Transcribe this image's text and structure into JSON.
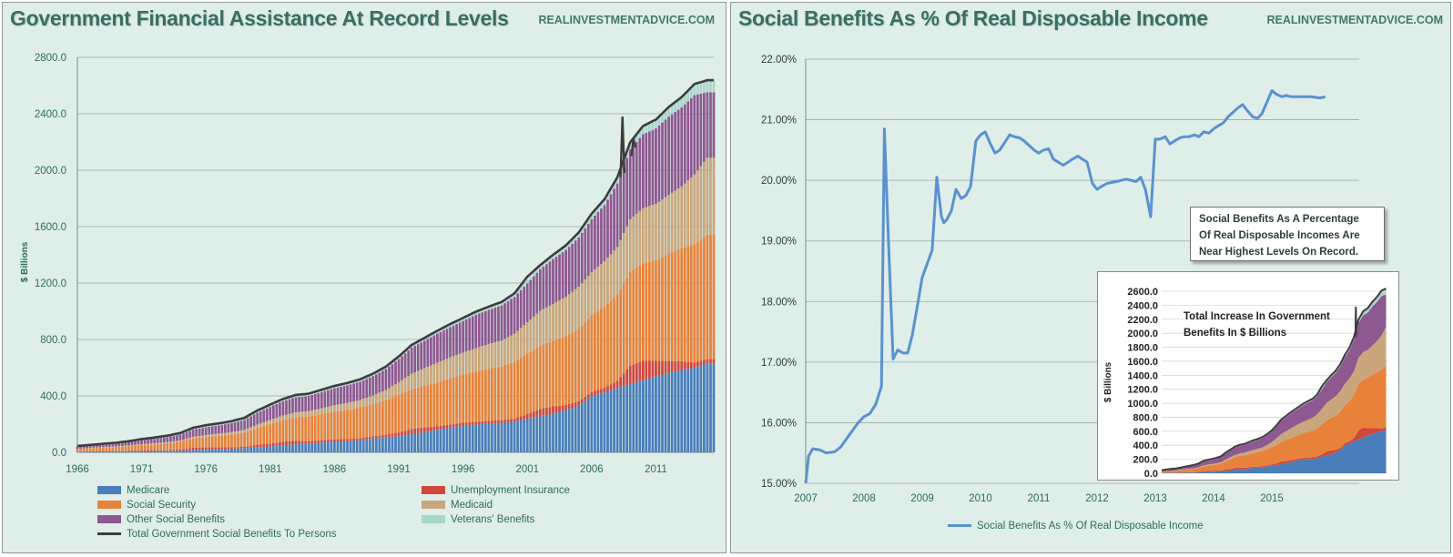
{
  "left": {
    "title": "Government Financial Assistance At Record Levels",
    "site": "REALINVESTMENTADVICE.COM"
  },
  "right": {
    "title": "Social Benefits As % Of Real Disposable Income",
    "site": "REALINVESTMENTADVICE.COM",
    "note": [
      "Social Benefits As  A Percentage",
      "Of Real Disposable Incomes Are",
      "Near Highest Levels On Record."
    ],
    "inset_note": [
      "Total Increase In Government",
      "Benefits In $ Billions"
    ]
  },
  "colors": {
    "medicare": "#4a7ebb",
    "unemployment": "#d2463c",
    "social_security": "#e8823a",
    "medicaid": "#c9a67c",
    "other": "#8e5891",
    "veterans": "#a9d6cb",
    "total": "#3d3d3d",
    "ratio_line": "#5b91cf",
    "axis_text": "#2f6b5f",
    "panel_bg": "#dfeee9"
  },
  "chart_data": [
    {
      "type": "area",
      "subtype": "stacked-bar",
      "title": "Government Financial Assistance At Record Levels",
      "xlabel": "",
      "ylabel": "$ Billions",
      "ylim": [
        0,
        2800
      ],
      "yticks": [
        "0.0",
        "400.0",
        "800.0",
        "1200.0",
        "1600.0",
        "2000.0",
        "2400.0",
        "2800.0"
      ],
      "xticks": [
        "1966",
        "1971",
        "1976",
        "1981",
        "1986",
        "1991",
        "1996",
        "2001",
        "2006",
        "2011"
      ],
      "xlim": [
        1966,
        2015.5
      ],
      "grid": true,
      "legend_position": "bottom",
      "x": [
        1966,
        1967,
        1968,
        1969,
        1970,
        1971,
        1972,
        1973,
        1974,
        1975,
        1976,
        1977,
        1978,
        1979,
        1980,
        1981,
        1982,
        1983,
        1984,
        1985,
        1986,
        1987,
        1988,
        1989,
        1990,
        1991,
        1992,
        1993,
        1994,
        1995,
        1996,
        1997,
        1998,
        1999,
        2000,
        2001,
        2002,
        2003,
        2004,
        2005,
        2006,
        2007,
        2008,
        2009,
        2010,
        2011,
        2012,
        2013,
        2014,
        2015
      ],
      "series": [
        {
          "name": "Medicare",
          "values": [
            2,
            6,
            7,
            8,
            8,
            9,
            10,
            11,
            13,
            16,
            20,
            23,
            26,
            30,
            36,
            43,
            50,
            56,
            62,
            69,
            75,
            80,
            86,
            98,
            107,
            115,
            129,
            142,
            160,
            175,
            188,
            197,
            203,
            207,
            219,
            239,
            255,
            273,
            300,
            330,
            398,
            425,
            455,
            484,
            511,
            540,
            563,
            584,
            600,
            630
          ]
        },
        {
          "name": "Unemployment Insurance",
          "values": [
            2,
            2,
            2,
            2,
            4,
            6,
            6,
            4,
            7,
            18,
            15,
            12,
            10,
            10,
            18,
            19,
            25,
            26,
            16,
            16,
            17,
            15,
            14,
            15,
            18,
            26,
            38,
            34,
            24,
            21,
            22,
            20,
            20,
            21,
            21,
            32,
            53,
            53,
            36,
            32,
            30,
            33,
            51,
            131,
            139,
            108,
            84,
            62,
            36,
            33
          ]
        },
        {
          "name": "Social Security",
          "values": [
            20,
            22,
            25,
            28,
            31,
            37,
            41,
            49,
            55,
            64,
            73,
            81,
            89,
            99,
            118,
            138,
            154,
            167,
            176,
            186,
            196,
            205,
            216,
            228,
            244,
            265,
            280,
            296,
            311,
            327,
            342,
            356,
            370,
            380,
            401,
            426,
            449,
            466,
            487,
            512,
            544,
            575,
            610,
            662,
            690,
            713,
            763,
            799,
            839,
            880
          ]
        },
        {
          "name": "Medicaid",
          "values": [
            1,
            2,
            3,
            4,
            5,
            6,
            7,
            8,
            9,
            12,
            15,
            17,
            18,
            21,
            25,
            30,
            32,
            35,
            38,
            42,
            46,
            50,
            55,
            62,
            73,
            91,
            110,
            125,
            140,
            150,
            155,
            165,
            175,
            185,
            200,
            225,
            245,
            260,
            280,
            300,
            305,
            320,
            340,
            375,
            390,
            400,
            415,
            440,
            495,
            545
          ]
        },
        {
          "name": "Other Social Benefits",
          "values": [
            15,
            16,
            18,
            20,
            24,
            28,
            32,
            36,
            42,
            51,
            55,
            58,
            64,
            70,
            85,
            92,
            102,
            107,
            108,
            115,
            121,
            126,
            130,
            138,
            148,
            165,
            185,
            195,
            207,
            215,
            224,
            237,
            242,
            249,
            261,
            276,
            296,
            318,
            332,
            350,
            376,
            400,
            450,
            495,
            525,
            535,
            555,
            560,
            562,
            465
          ]
        },
        {
          "name": "Veterans' Benefits",
          "values": [
            5,
            5,
            6,
            6,
            7,
            8,
            9,
            10,
            11,
            13,
            14,
            14,
            14,
            15,
            15,
            16,
            16,
            16,
            16,
            16,
            16,
            16,
            17,
            17,
            18,
            18,
            19,
            19,
            20,
            21,
            22,
            22,
            23,
            24,
            25,
            27,
            29,
            30,
            32,
            35,
            38,
            41,
            44,
            51,
            58,
            63,
            68,
            73,
            79,
            85
          ]
        },
        {
          "name": "Total Government Social Benefits To Persons",
          "values": [
            45,
            53,
            61,
            68,
            79,
            94,
            105,
            118,
            137,
            174,
            192,
            205,
            221,
            245,
            297,
            338,
            379,
            407,
            416,
            444,
            471,
            492,
            518,
            558,
            608,
            680,
            761,
            811,
            862,
            909,
            953,
            997,
            1033,
            1066,
            1127,
            1245,
            1327,
            1400,
            1467,
            1559,
            1691,
            1794,
            1950,
            2198,
            2313,
            2359,
            2448,
            2518,
            2611,
            2638
          ]
        }
      ],
      "annotations": [
        {
          "x": 2008.4,
          "value": 2380,
          "label": ""
        }
      ]
    },
    {
      "type": "line",
      "title": "Social Benefits As % Of Real Disposable Income",
      "xlabel": "",
      "ylabel": "",
      "ylim": [
        15.0,
        22.0
      ],
      "yticks": [
        "15.00%",
        "16.00%",
        "17.00%",
        "18.00%",
        "19.00%",
        "20.00%",
        "21.00%",
        "22.00%"
      ],
      "xticks": [
        "2007",
        "2008",
        "2009",
        "2010",
        "2011",
        "2012",
        "2013",
        "2014",
        "2015"
      ],
      "xlim": [
        2007,
        2016.5
      ],
      "grid": true,
      "legend_position": "bottom",
      "series": [
        {
          "name": "Social Benefits As % Of Real Disposable Income",
          "x": [
            2007.0,
            2007.05,
            2007.12,
            2007.25,
            2007.35,
            2007.5,
            2007.6,
            2007.75,
            2007.9,
            2008.0,
            2008.1,
            2008.2,
            2008.3,
            2008.35,
            2008.42,
            2008.5,
            2008.58,
            2008.67,
            2008.75,
            2008.83,
            2008.92,
            2009.0,
            2009.17,
            2009.25,
            2009.33,
            2009.37,
            2009.42,
            2009.5,
            2009.58,
            2009.67,
            2009.75,
            2009.83,
            2009.92,
            2010.0,
            2010.08,
            2010.17,
            2010.25,
            2010.33,
            2010.5,
            2010.58,
            2010.67,
            2010.75,
            2010.92,
            2011.0,
            2011.08,
            2011.17,
            2011.25,
            2011.42,
            2011.5,
            2011.58,
            2011.67,
            2011.83,
            2011.92,
            2012.0,
            2012.08,
            2012.17,
            2012.33,
            2012.5,
            2012.67,
            2012.75,
            2012.83,
            2012.92,
            2013.0,
            2013.08,
            2013.17,
            2013.25,
            2013.33,
            2013.42,
            2013.5,
            2013.58,
            2013.67,
            2013.75,
            2013.83,
            2013.92,
            2014.0,
            2014.08,
            2014.17,
            2014.25,
            2014.33,
            2014.42,
            2014.5,
            2014.58,
            2014.67,
            2014.75,
            2014.83,
            2014.92,
            2015.0,
            2015.08,
            2015.17,
            2015.25,
            2015.33,
            2015.42,
            2015.5,
            2015.67,
            2015.83,
            2015.92
          ],
          "values": [
            15.0,
            15.45,
            15.57,
            15.55,
            15.5,
            15.52,
            15.6,
            15.8,
            16.0,
            16.1,
            16.15,
            16.3,
            16.6,
            20.85,
            19.0,
            17.05,
            17.2,
            17.15,
            17.15,
            17.45,
            17.95,
            18.4,
            18.85,
            20.05,
            19.4,
            19.3,
            19.35,
            19.5,
            19.85,
            19.7,
            19.75,
            19.9,
            20.65,
            20.75,
            20.8,
            20.6,
            20.45,
            20.5,
            20.75,
            20.72,
            20.7,
            20.65,
            20.5,
            20.45,
            20.5,
            20.52,
            20.35,
            20.25,
            20.3,
            20.35,
            20.4,
            20.3,
            19.95,
            19.85,
            19.9,
            19.95,
            19.98,
            20.02,
            19.98,
            20.05,
            19.85,
            19.4,
            20.68,
            20.68,
            20.72,
            20.6,
            20.65,
            20.7,
            20.72,
            20.72,
            20.75,
            20.72,
            20.8,
            20.78,
            20.85,
            20.9,
            20.95,
            21.05,
            21.12,
            21.2,
            21.25,
            21.15,
            21.05,
            21.02,
            21.1,
            21.3,
            21.48,
            21.42,
            21.38,
            21.4,
            21.38,
            21.38,
            21.38,
            21.38,
            21.36,
            21.38
          ]
        }
      ]
    },
    {
      "type": "area",
      "title": "",
      "ylabel": "$ Billions",
      "ylim": [
        0,
        2600
      ],
      "yticks": [
        "0.0",
        "200.0",
        "400.0",
        "600.0",
        "800.0",
        "1000.0",
        "1200.0",
        "1400.0",
        "1600.0",
        "1800.0",
        "2000.0",
        "2200.0",
        "2400.0",
        "2600.0"
      ],
      "note": "inset: same stacked series as the left chart, 1966-2015",
      "grid": true
    }
  ],
  "legend_left": [
    {
      "label": "Medicare",
      "key": "medicare"
    },
    {
      "label": "Unemployment Insurance",
      "key": "unemployment"
    },
    {
      "label": "Social Security",
      "key": "social_security"
    },
    {
      "label": "Medicaid",
      "key": "medicaid"
    },
    {
      "label": "Other Social Benefits",
      "key": "other"
    },
    {
      "label": "Veterans' Benefits",
      "key": "veterans"
    },
    {
      "label": "Total Government Social Benefits To Persons",
      "key": "total"
    }
  ],
  "legend_right": {
    "label": "Social Benefits As % Of Real Disposable Income"
  }
}
